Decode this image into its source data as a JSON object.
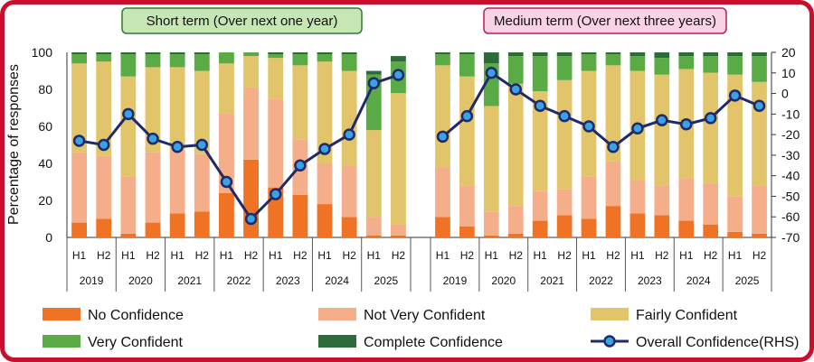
{
  "chart_data": {
    "type": "bar",
    "ylabel": "Percentage of responses",
    "ylim": [
      0,
      100
    ],
    "y_right_lim": [
      -70,
      20
    ],
    "y_right_ticks": [
      20,
      10,
      0,
      -10,
      -20,
      -30,
      -40,
      -50,
      -60,
      -70
    ],
    "y_left_ticks": [
      0,
      20,
      40,
      60,
      80,
      100
    ],
    "colors": {
      "No Confidence": "#f07224",
      "Not Very Confident": "#f4ae8a",
      "Fairly Confident": "#e2c46a",
      "Very Confident": "#5aab46",
      "Complete Confidence": "#2e6b3a",
      "line": "#1f2a6b"
    },
    "series_names": [
      "No Confidence",
      "Not Very Confident",
      "Fairly Confident",
      "Very Confident",
      "Complete Confidence",
      "Overall Confidence(RHS)"
    ],
    "panels": [
      {
        "title": "Short term (Over next one year)",
        "title_bg": "#c6e6b6",
        "title_border": "#2e7d32",
        "years": [
          "2019",
          "2020",
          "2021",
          "2022",
          "2023",
          "2024",
          "2025"
        ],
        "halves": [
          "H1",
          "H2",
          "H1",
          "H2",
          "H1",
          "H2",
          "H1",
          "H2",
          "H1",
          "H2",
          "H1",
          "H2",
          "H1",
          "H2"
        ],
        "no_confidence": [
          8,
          10,
          2,
          8,
          13,
          14,
          24,
          42,
          27,
          23,
          18,
          11,
          1,
          1
        ],
        "not_very_confident": [
          38,
          34,
          31,
          38,
          34,
          31,
          43,
          39,
          48,
          30,
          22,
          28,
          10,
          6
        ],
        "fairly_confident": [
          48,
          51,
          54,
          46,
          45,
          45,
          27,
          17,
          22,
          40,
          55,
          51,
          47,
          71
        ],
        "very_confident": [
          5,
          4,
          12,
          7,
          7,
          9,
          6,
          2,
          2,
          6,
          4,
          9,
          30,
          17
        ],
        "complete_confidence": [
          1,
          1,
          1,
          1,
          1,
          1,
          0,
          0,
          1,
          1,
          1,
          1,
          2,
          3
        ],
        "overall_confidence": [
          -23,
          -25,
          -10,
          -22,
          -26,
          -25,
          -43,
          -61,
          -49,
          -35,
          -27,
          -20,
          5,
          9
        ]
      },
      {
        "title": "Medium term (Over next three years)",
        "title_bg": "#f8d3e6",
        "title_border": "#c2185b",
        "years": [
          "2019",
          "2020",
          "2021",
          "2022",
          "2023",
          "2024",
          "2025"
        ],
        "halves": [
          "H1",
          "H2",
          "H1",
          "H2",
          "H1",
          "H2",
          "H1",
          "H2",
          "H1",
          "H2",
          "H1",
          "H2",
          "H1",
          "H2"
        ],
        "no_confidence": [
          11,
          6,
          1,
          2,
          9,
          12,
          10,
          17,
          13,
          12,
          9,
          7,
          3,
          2
        ],
        "not_very_confident": [
          27,
          22,
          13,
          15,
          16,
          14,
          23,
          24,
          18,
          16,
          23,
          22,
          19,
          26
        ],
        "fairly_confident": [
          55,
          59,
          57,
          66,
          54,
          59,
          57,
          52,
          59,
          60,
          59,
          60,
          66,
          56
        ],
        "very_confident": [
          6,
          12,
          23,
          15,
          19,
          13,
          9,
          6,
          8,
          9,
          7,
          9,
          10,
          14
        ],
        "complete_confidence": [
          1,
          1,
          6,
          2,
          2,
          2,
          1,
          1,
          2,
          3,
          2,
          2,
          2,
          2
        ],
        "overall_confidence": [
          -21,
          -11,
          10,
          2,
          -6,
          -11,
          -16,
          -26,
          -17,
          -13,
          -15,
          -12,
          -1,
          -6
        ]
      }
    ]
  }
}
